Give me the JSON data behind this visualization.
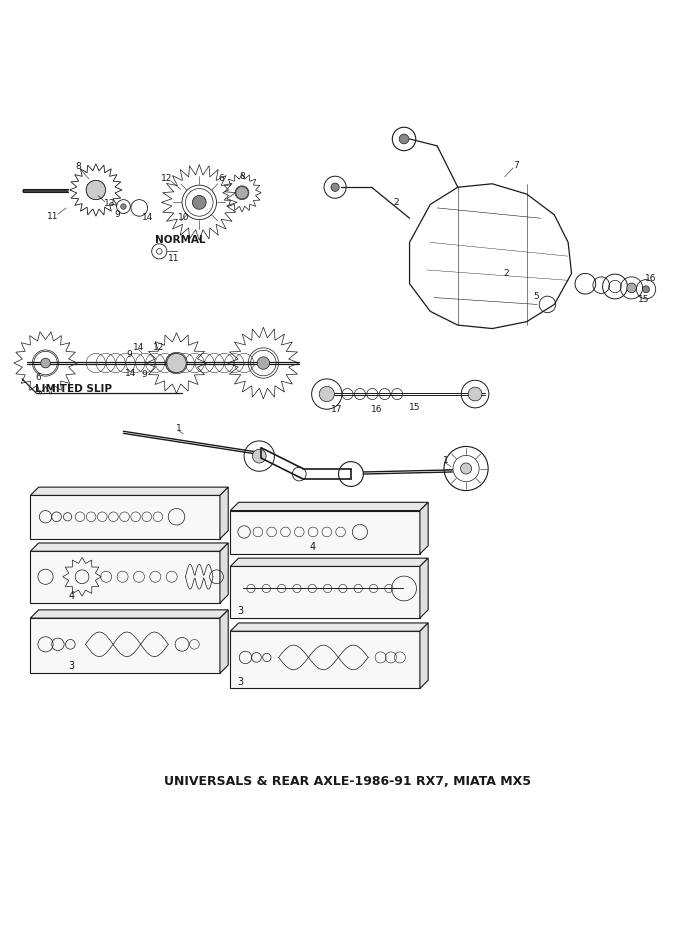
{
  "title": "UNIVERSALS & REAR AXLE-1986-91 RX7, MIATA MX5",
  "title_fontsize": 9,
  "bg_color": "#ffffff",
  "line_color": "#1a1a1a",
  "label_normal": "NORMAL",
  "label_limited": "LIMITED SLIP",
  "figsize": [
    6.95,
    9.26
  ],
  "dpi": 100
}
